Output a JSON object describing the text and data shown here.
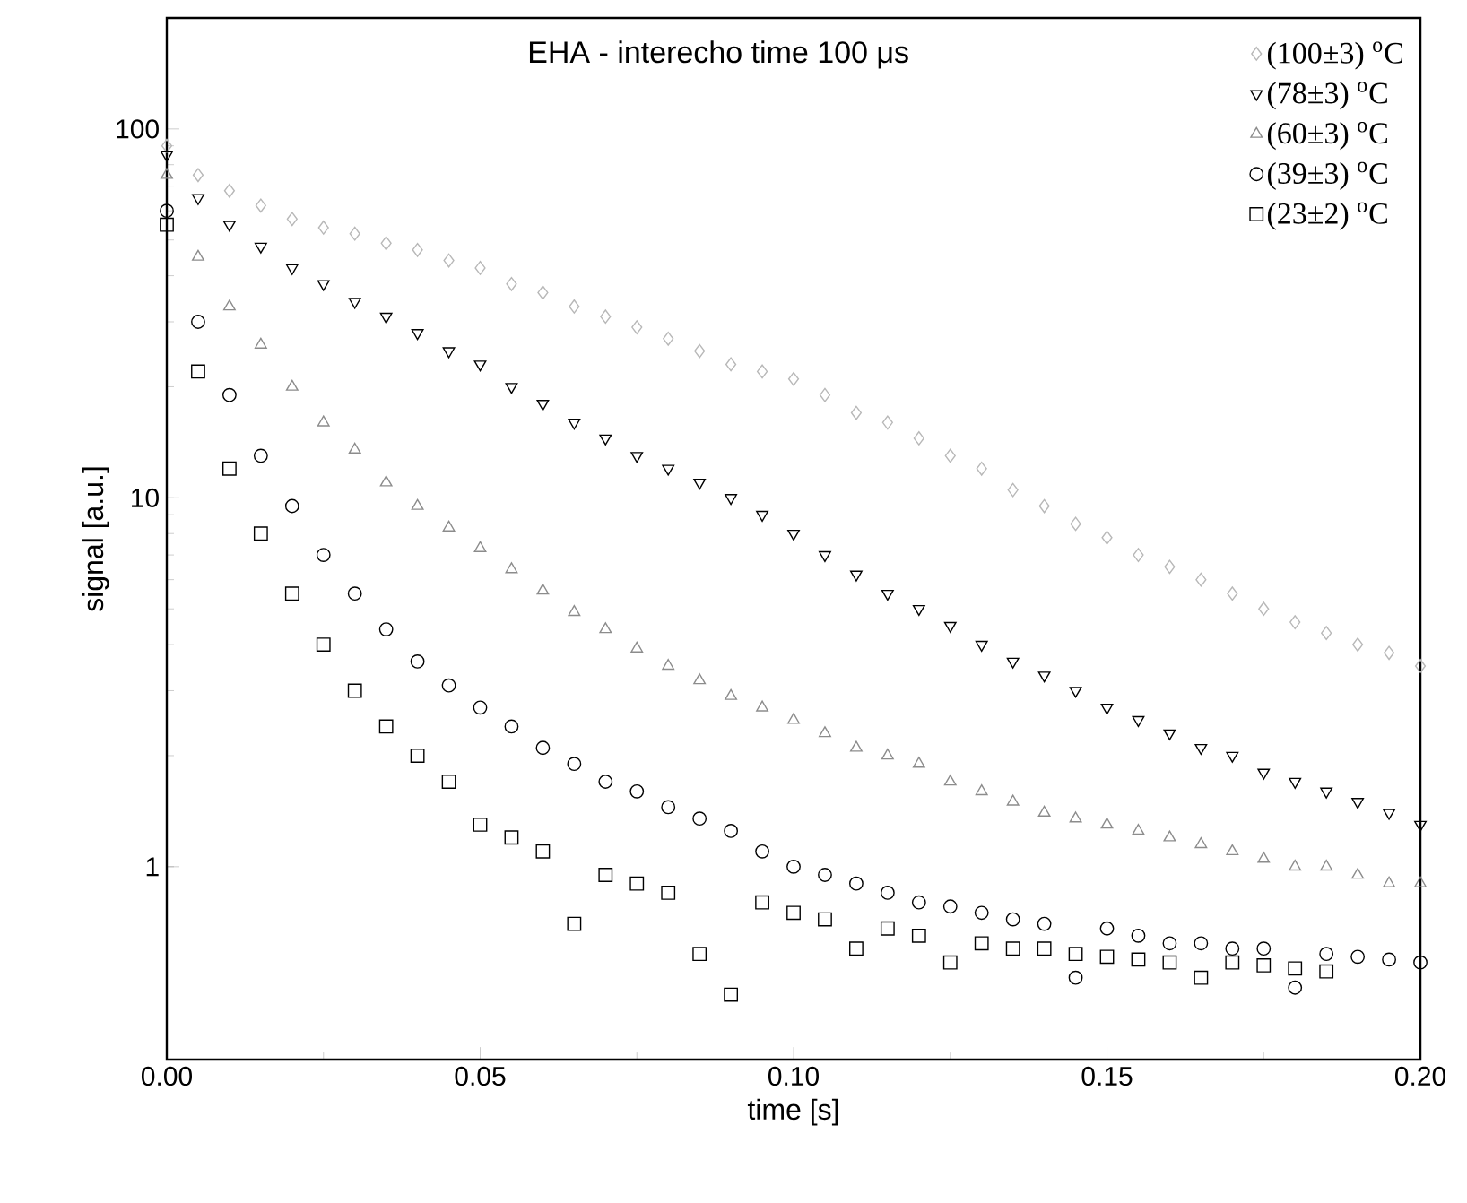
{
  "chart_data": {
    "type": "scatter",
    "title": "EHA - interecho time 100 μs",
    "xlabel": "time [s]",
    "ylabel": "signal [a.u.]",
    "log": "y",
    "legend": "top right",
    "xlim": [
      0,
      0.2
    ],
    "xticks": [
      {
        "value": 0,
        "label": "0.00"
      },
      {
        "value": 0.05,
        "label": "0.05"
      },
      {
        "value": 0.1,
        "label": "0.10"
      },
      {
        "value": 0.15,
        "label": "0.15"
      },
      {
        "value": 0.2,
        "label": "0.20"
      }
    ],
    "ylim": [
      0.3,
      200
    ],
    "yticks": [
      1,
      10,
      100
    ],
    "x": [
      0,
      0.005,
      0.01,
      0.015,
      0.02,
      0.025,
      0.03,
      0.035,
      0.04,
      0.045,
      0.05,
      0.055,
      0.06,
      0.065,
      0.07,
      0.075,
      0.08,
      0.085,
      0.09,
      0.095,
      0.1,
      0.105,
      0.11,
      0.115,
      0.12,
      0.125,
      0.13,
      0.135,
      0.14,
      0.145,
      0.15,
      0.155,
      0.16,
      0.165,
      0.17,
      0.175,
      0.18,
      0.185,
      0.19,
      0.195,
      0.2
    ],
    "series": [
      {
        "name": "(100±3) $^{o}$C",
        "color": "#b8b8b8",
        "marker": "diamond",
        "values": [
          90,
          75,
          68,
          62,
          57,
          54,
          52,
          49,
          47,
          44,
          42,
          38,
          36,
          33,
          31,
          29,
          27,
          25,
          23,
          22,
          21,
          19,
          17,
          16,
          14.5,
          13,
          12,
          10.5,
          9.5,
          8.5,
          7.8,
          7,
          6.5,
          6,
          5.5,
          5,
          4.6,
          4.3,
          4,
          3.8,
          3.5
        ]
      },
      {
        "name": "(78±3) $^{o}$C",
        "color": "#000000",
        "marker": "triangle-down",
        "values": [
          85,
          65,
          55,
          48,
          42,
          38,
          34,
          31,
          28,
          25,
          23,
          20,
          18,
          16,
          14.5,
          13,
          12,
          11,
          10,
          9,
          8,
          7,
          6.2,
          5.5,
          5,
          4.5,
          4,
          3.6,
          3.3,
          3,
          2.7,
          2.5,
          2.3,
          2.1,
          2,
          1.8,
          1.7,
          1.6,
          1.5,
          1.4,
          1.3
        ]
      },
      {
        "name": "(60±3) $^{o}$C",
        "color": "#8c8c8c",
        "marker": "triangle",
        "values": [
          75,
          45,
          33,
          26,
          20,
          16,
          13.5,
          11,
          9.5,
          8.3,
          7.3,
          6.4,
          5.6,
          4.9,
          4.4,
          3.9,
          3.5,
          3.2,
          2.9,
          2.7,
          2.5,
          2.3,
          2.1,
          2,
          1.9,
          1.7,
          1.6,
          1.5,
          1.4,
          1.35,
          1.3,
          1.25,
          1.2,
          1.15,
          1.1,
          1.05,
          1,
          1,
          0.95,
          0.9,
          0.9
        ]
      },
      {
        "name": "(39±3) $^{o}$C",
        "color": "#000000",
        "marker": "circle",
        "values": [
          60,
          30,
          19,
          13,
          9.5,
          7,
          5.5,
          4.4,
          3.6,
          3.1,
          2.7,
          2.4,
          2.1,
          1.9,
          1.7,
          1.6,
          1.45,
          1.35,
          1.25,
          1.1,
          1,
          0.95,
          0.9,
          0.85,
          0.8,
          0.78,
          0.75,
          0.72,
          0.7,
          0.5,
          0.68,
          0.65,
          0.62,
          0.62,
          0.6,
          0.6,
          0.47,
          0.58,
          0.57,
          0.56,
          0.55
        ]
      },
      {
        "name": "(23±2) $^{o}$C",
        "color": "#000000",
        "marker": "square",
        "values": [
          55,
          22,
          12,
          8,
          5.5,
          4,
          3,
          2.4,
          2,
          1.7,
          1.3,
          1.2,
          1.1,
          0.7,
          0.95,
          0.9,
          0.85,
          0.58,
          0.45,
          0.8,
          0.75,
          0.72,
          0.6,
          0.68,
          0.65,
          0.55,
          0.62,
          0.6,
          0.6,
          0.58,
          0.57,
          0.56,
          0.55,
          0.5,
          0.55,
          0.54,
          0.53,
          0.52,
          null,
          null,
          null
        ]
      }
    ]
  }
}
